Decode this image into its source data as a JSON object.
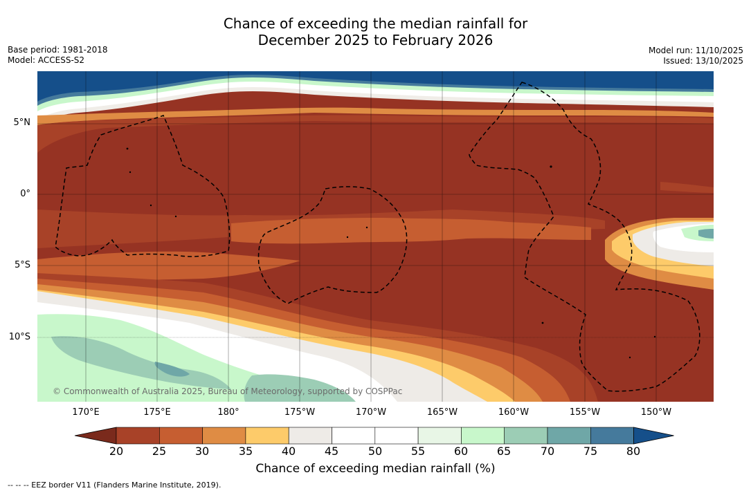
{
  "title": {
    "line1": "Chance of exceeding the median rainfall for",
    "line2": "December 2025 to February 2026"
  },
  "meta_left": {
    "base_period": "Base period: 1981-2018",
    "model": "Model: ACCESS-S2"
  },
  "meta_right": {
    "model_run": "Model run: 11/10/2025",
    "issued": "Issued: 13/10/2025"
  },
  "map": {
    "lat_labels": [
      "5°N",
      "0°",
      "5°S",
      "10°S"
    ],
    "lon_labels": [
      "170°E",
      "175°E",
      "180°",
      "175°W",
      "170°W",
      "165°W",
      "160°W",
      "155°W",
      "150°W"
    ],
    "credit": "© Commonwealth of Australia 2025, Bureau of Meteorology, supported by COSPPac"
  },
  "colorbar": {
    "ticks": [
      "20",
      "25",
      "30",
      "35",
      "40",
      "45",
      "50",
      "55",
      "60",
      "65",
      "70",
      "75",
      "80"
    ],
    "colors": [
      "#7a2a1c",
      "#a84228",
      "#c65e31",
      "#df8c44",
      "#fdcb6a",
      "#eeebe7",
      "#ffffff",
      "#ffffff",
      "#e8f6e6",
      "#c8f7cb",
      "#9ccdb5",
      "#6fa7a7",
      "#457a9c",
      "#154f8a"
    ],
    "label": "Chance of exceeding median rainfall (%)"
  },
  "footer": "--  --  -- EEZ border V11 (Flanders Marine Institute, 2019)."
}
